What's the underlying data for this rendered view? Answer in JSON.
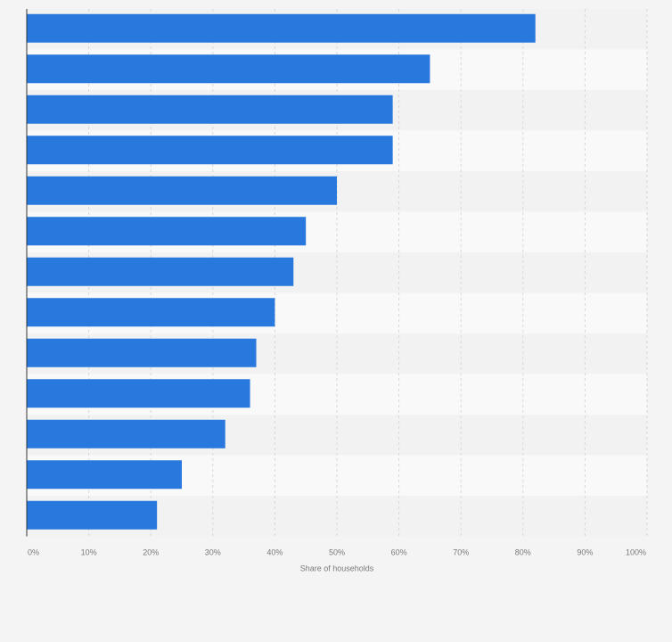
{
  "chart_data": {
    "type": "bar",
    "orientation": "horizontal",
    "categories": [
      "",
      "",
      "",
      "",
      "",
      "",
      "",
      "",
      "",
      "",
      "",
      "",
      ""
    ],
    "values": [
      82,
      65,
      59,
      59,
      50,
      45,
      43,
      40,
      37,
      36,
      32,
      25,
      21
    ],
    "xlim": [
      0,
      100
    ],
    "xticks": [
      "0%",
      "10%",
      "20%",
      "30%",
      "40%",
      "50%",
      "60%",
      "70%",
      "80%",
      "90%",
      "100%"
    ],
    "xlabel": "Share of households",
    "title": "",
    "grid": true,
    "colors": {
      "bar": "#2878dd",
      "background": "#f4f4f5",
      "band_light": "#f9f9fa",
      "band_dark": "#f2f2f3",
      "grid": "#d8d8d8",
      "axis": "#333333",
      "text": "#7a7a7a"
    }
  }
}
